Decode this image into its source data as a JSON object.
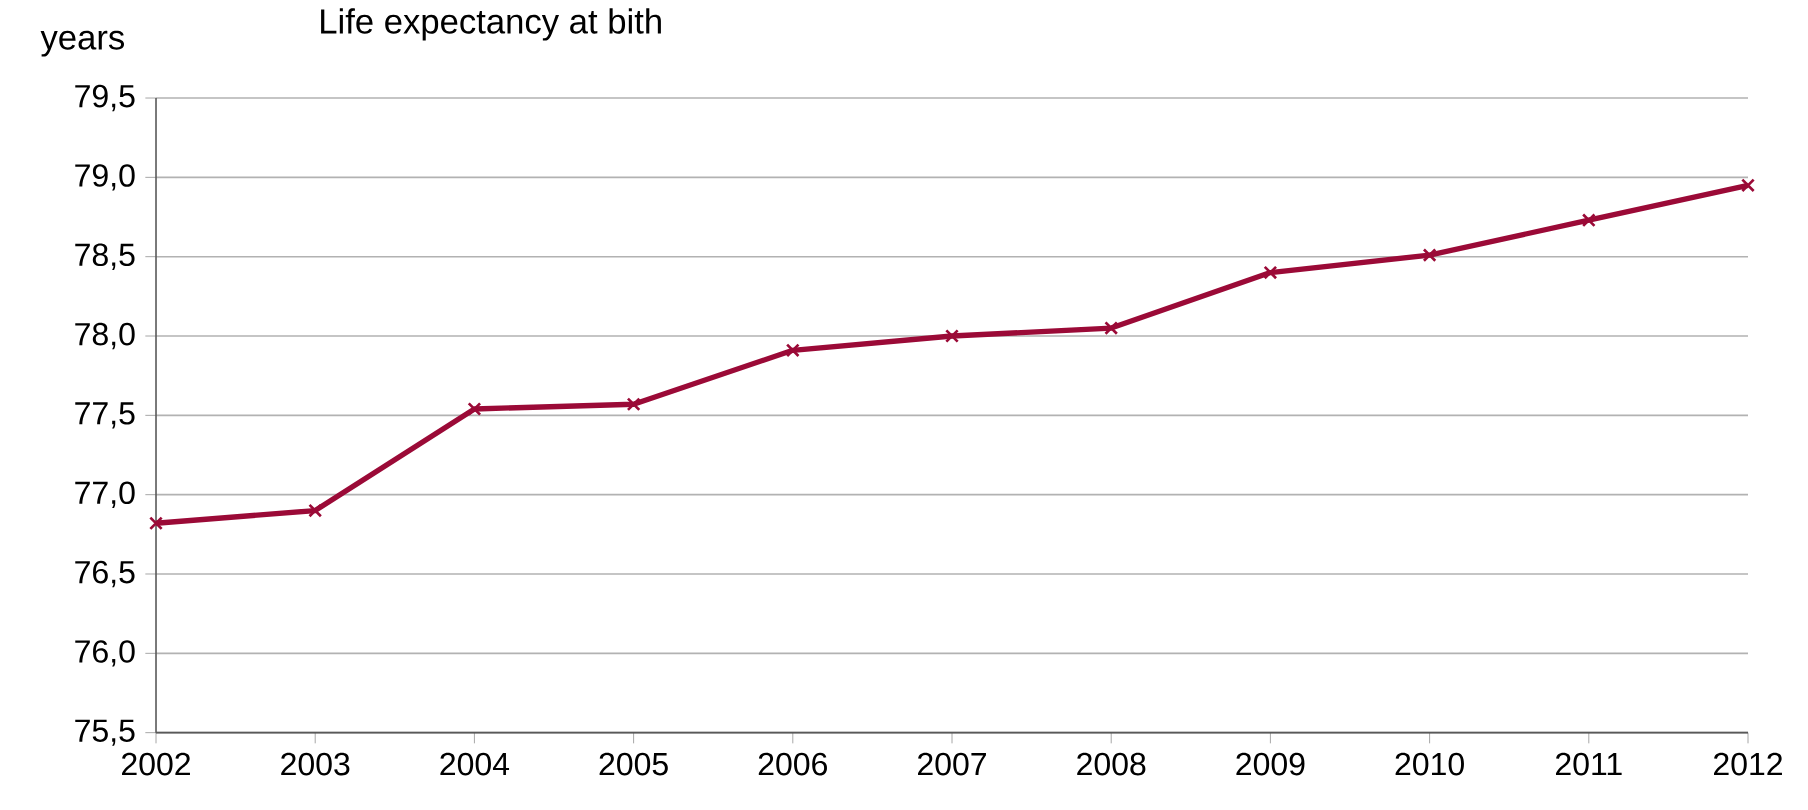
{
  "chart_data": {
    "type": "line",
    "title": "Life expectancy at bith",
    "ylabel": "years",
    "categories": [
      "2002",
      "2003",
      "2004",
      "2005",
      "2006",
      "2007",
      "2008",
      "2009",
      "2010",
      "2011",
      "2012"
    ],
    "series": [
      {
        "color": "#9b0a37",
        "values": [
          76.82,
          76.9,
          77.54,
          77.57,
          77.91,
          78.0,
          78.05,
          78.4,
          78.51,
          78.73,
          78.95
        ]
      }
    ],
    "ylim": [
      75.5,
      79.5
    ],
    "yticks": [
      {
        "value": 75.5,
        "label": "75,5"
      },
      {
        "value": 76,
        "label": "76,0"
      },
      {
        "value": 76.5,
        "label": "76,5"
      },
      {
        "value": 77,
        "label": "77,0"
      },
      {
        "value": 77.5,
        "label": "77,5"
      },
      {
        "value": 78,
        "label": "78,0"
      },
      {
        "value": 78.5,
        "label": "78,5"
      },
      {
        "value": 79,
        "label": "79,0"
      },
      {
        "value": 79.5,
        "label": "79,5"
      }
    ],
    "grid": "y",
    "marker": "cross",
    "line_style": "solid"
  }
}
